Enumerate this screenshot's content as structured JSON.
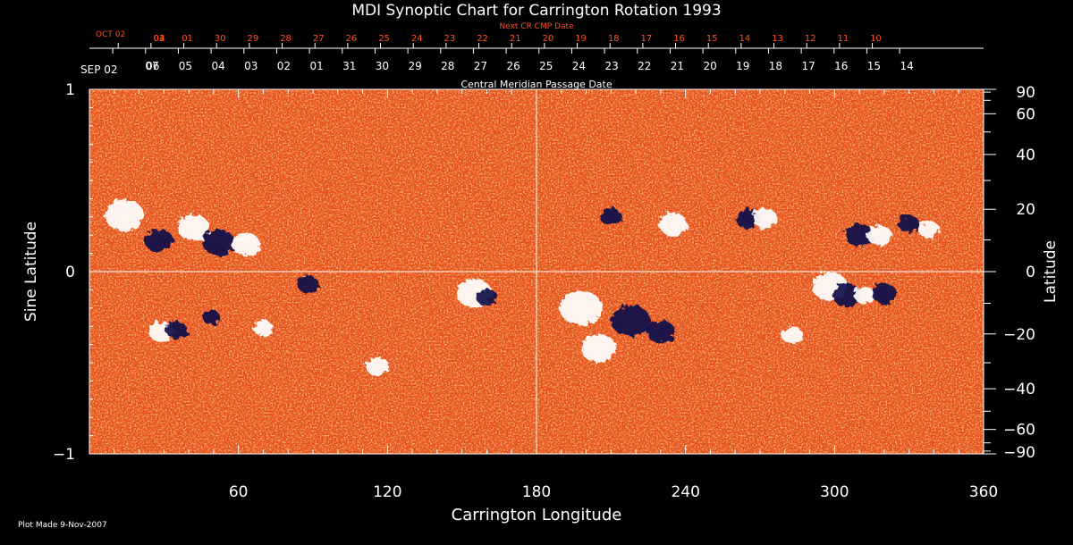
{
  "chart_data": {
    "type": "heatmap",
    "title": "MDI Synoptic Chart for Carrington Rotation 1993",
    "xlabel": "Carrington Longitude",
    "ylabel_left": "Sine Latitude",
    "ylabel_right": "Latitude",
    "xlim": [
      0,
      360
    ],
    "ylim_sine": [
      -1,
      1
    ],
    "x_ticks": [
      60,
      120,
      180,
      240,
      300,
      360
    ],
    "left_ticks": [
      {
        "value": 1,
        "label": "1"
      },
      {
        "value": 0,
        "label": "0"
      },
      {
        "value": -1,
        "label": "−1"
      }
    ],
    "right_ticks": [
      {
        "value": 90,
        "label": "90"
      },
      {
        "value": 60,
        "label": "60"
      },
      {
        "value": 40,
        "label": "40"
      },
      {
        "value": 20,
        "label": "20"
      },
      {
        "value": 0,
        "label": "0"
      },
      {
        "value": -20,
        "label": "−20"
      },
      {
        "value": -40,
        "label": "−40"
      },
      {
        "value": -60,
        "label": "−60"
      },
      {
        "value": -90,
        "label": "−90"
      }
    ],
    "grid_lines": {
      "longitude": 180,
      "sine_latitude": 0
    },
    "cmp_axis": {
      "label": "Central Meridian Passage Date",
      "start_label": "SEP 02",
      "dates": [
        "07",
        "06",
        "05",
        "04",
        "03",
        "02",
        "01",
        "31",
        "30",
        "29",
        "28",
        "27",
        "26",
        "25",
        "24",
        "23",
        "22",
        "21",
        "20",
        "19",
        "18",
        "17",
        "16",
        "15",
        "14"
      ],
      "date_longitudes": [
        9.4,
        22.6,
        35.8,
        49.0,
        62.2,
        75.4,
        88.6,
        101.8,
        115.0,
        128.2,
        141.4,
        154.6,
        167.8,
        181.0,
        194.2,
        207.4,
        220.6,
        233.8,
        247.0,
        260.2,
        273.4,
        286.6,
        299.8,
        313.0,
        326.2
      ]
    },
    "next_cr_axis": {
      "label": "Next CR CMP Date",
      "start_label": "OCT 02",
      "dates": [
        "04",
        "03",
        "02",
        "01",
        "30",
        "29",
        "28",
        "27",
        "26",
        "25",
        "24",
        "23",
        "22",
        "21",
        "20",
        "19",
        "18",
        "17",
        "16",
        "15",
        "14",
        "13",
        "12",
        "11",
        "10"
      ],
      "date_longitudes": [
        -1.6,
        11.6,
        24.8,
        38.0,
        51.2,
        64.4,
        77.6,
        90.8,
        104.0,
        117.2,
        130.4,
        143.6,
        156.8,
        170.0,
        183.2,
        196.4,
        209.6,
        222.8,
        236.0,
        249.2,
        262.4,
        275.6,
        288.8,
        302.0,
        315.2
      ]
    },
    "colors": {
      "background_field": "#e8501a",
      "positive_polarity": "#ffffff",
      "negative_polarity": "#10104a",
      "next_cr_text": "#ff5020",
      "axis_text": "#ffffff"
    },
    "active_regions": [
      {
        "lon": 14,
        "sinlat": 0.31,
        "polarity": "positive",
        "size": 22
      },
      {
        "lon": 28,
        "sinlat": 0.17,
        "polarity": "negative",
        "size": 16
      },
      {
        "lon": 42,
        "sinlat": 0.24,
        "polarity": "positive",
        "size": 18
      },
      {
        "lon": 52,
        "sinlat": 0.16,
        "polarity": "negative",
        "size": 18
      },
      {
        "lon": 63,
        "sinlat": 0.15,
        "polarity": "positive",
        "size": 16
      },
      {
        "lon": 29,
        "sinlat": -0.33,
        "polarity": "positive",
        "size": 14
      },
      {
        "lon": 35,
        "sinlat": -0.32,
        "polarity": "negative",
        "size": 12
      },
      {
        "lon": 49,
        "sinlat": -0.25,
        "polarity": "negative",
        "size": 10
      },
      {
        "lon": 70,
        "sinlat": -0.31,
        "polarity": "positive",
        "size": 11
      },
      {
        "lon": 88,
        "sinlat": -0.07,
        "polarity": "negative",
        "size": 12
      },
      {
        "lon": 116,
        "sinlat": -0.52,
        "polarity": "positive",
        "size": 13
      },
      {
        "lon": 155,
        "sinlat": -0.12,
        "polarity": "positive",
        "size": 20
      },
      {
        "lon": 160,
        "sinlat": -0.14,
        "polarity": "negative",
        "size": 12
      },
      {
        "lon": 198,
        "sinlat": -0.2,
        "polarity": "positive",
        "size": 24
      },
      {
        "lon": 205,
        "sinlat": -0.42,
        "polarity": "positive",
        "size": 20
      },
      {
        "lon": 218,
        "sinlat": -0.27,
        "polarity": "negative",
        "size": 22
      },
      {
        "lon": 230,
        "sinlat": -0.33,
        "polarity": "negative",
        "size": 16
      },
      {
        "lon": 210,
        "sinlat": 0.3,
        "polarity": "negative",
        "size": 12
      },
      {
        "lon": 235,
        "sinlat": 0.26,
        "polarity": "positive",
        "size": 16
      },
      {
        "lon": 265,
        "sinlat": 0.29,
        "polarity": "negative",
        "size": 14
      },
      {
        "lon": 272,
        "sinlat": 0.29,
        "polarity": "positive",
        "size": 14
      },
      {
        "lon": 283,
        "sinlat": -0.35,
        "polarity": "positive",
        "size": 12
      },
      {
        "lon": 298,
        "sinlat": -0.08,
        "polarity": "positive",
        "size": 20
      },
      {
        "lon": 305,
        "sinlat": -0.13,
        "polarity": "negative",
        "size": 16
      },
      {
        "lon": 312,
        "sinlat": -0.13,
        "polarity": "positive",
        "size": 12
      },
      {
        "lon": 320,
        "sinlat": -0.12,
        "polarity": "negative",
        "size": 14
      },
      {
        "lon": 310,
        "sinlat": 0.2,
        "polarity": "negative",
        "size": 16
      },
      {
        "lon": 318,
        "sinlat": 0.2,
        "polarity": "positive",
        "size": 14
      },
      {
        "lon": 330,
        "sinlat": 0.26,
        "polarity": "negative",
        "size": 12
      },
      {
        "lon": 338,
        "sinlat": 0.23,
        "polarity": "positive",
        "size": 12
      }
    ]
  },
  "footer": {
    "plot_made": "Plot Made  9-Nov-2007"
  }
}
